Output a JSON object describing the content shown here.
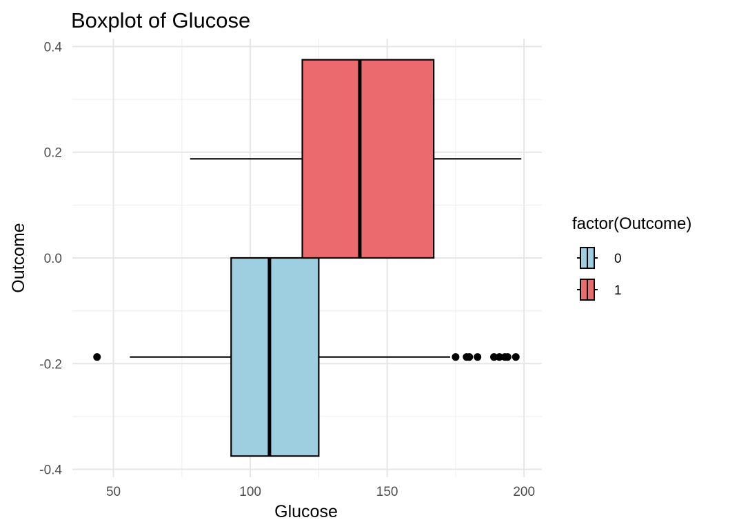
{
  "chart_data": {
    "type": "boxplot",
    "title": "Boxplot of Glucose",
    "xlabel": "Glucose",
    "ylabel": "Outcome",
    "xlim": [
      35,
      206.5
    ],
    "ylim": [
      -0.415,
      0.415
    ],
    "x_ticks": [
      50,
      100,
      150,
      200
    ],
    "x_tick_labels": [
      "50",
      "100",
      "150",
      "200"
    ],
    "y_ticks": [
      0.4,
      0.2,
      0.0,
      -0.2,
      -0.4
    ],
    "y_tick_labels": [
      "0.4",
      "0.2",
      "0.0",
      "-0.2",
      "-0.4"
    ],
    "grid": true,
    "legend": {
      "title": "factor(Outcome)",
      "position": "right",
      "entries": [
        {
          "label": "0",
          "color": "#9ECFE1"
        },
        {
          "label": "1",
          "color": "#EA6A6E"
        }
      ]
    },
    "boxes": [
      {
        "group": "0",
        "color": "#9ECFE1",
        "y_center": -0.1875,
        "y_low": -0.375,
        "y_high": 0.0,
        "whisker_low": 56,
        "q1": 93,
        "median": 107,
        "q3": 125,
        "whisker_high": 173,
        "outliers": [
          44,
          175,
          179,
          180,
          183,
          189,
          191,
          193,
          194,
          197
        ]
      },
      {
        "group": "1",
        "color": "#EA6A6E",
        "y_center": 0.1875,
        "y_low": 0.0,
        "y_high": 0.375,
        "whisker_low": 78,
        "q1": 119,
        "median": 140,
        "q3": 167,
        "whisker_high": 199,
        "outliers": []
      }
    ]
  }
}
